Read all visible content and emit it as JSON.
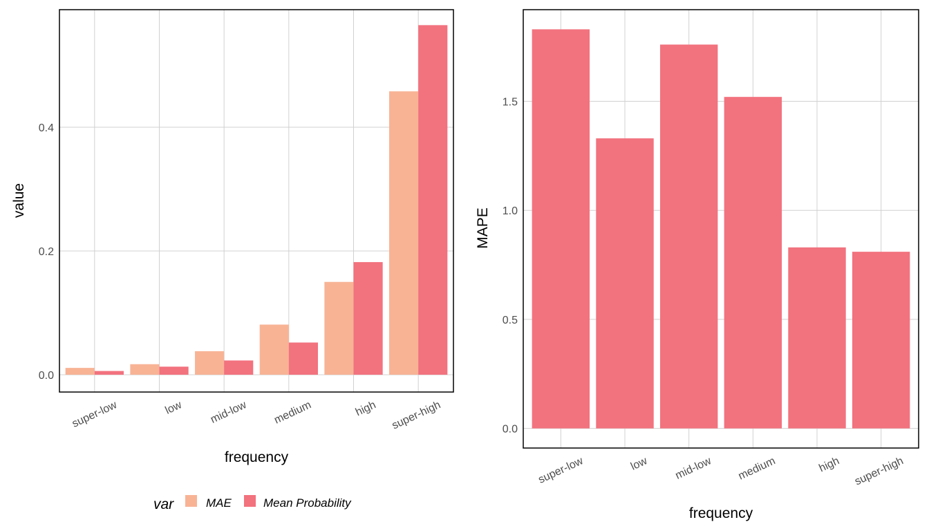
{
  "chart_data": [
    {
      "type": "bar",
      "categories": [
        "super-low",
        "low",
        "mid-low",
        "medium",
        "high",
        "super-high"
      ],
      "series": [
        {
          "name": "MAE",
          "values": [
            0.011,
            0.017,
            0.038,
            0.081,
            0.15,
            0.458
          ]
        },
        {
          "name": "Mean Probability",
          "values": [
            0.006,
            0.013,
            0.023,
            0.052,
            0.182,
            0.565
          ]
        }
      ],
      "xlabel": "frequency",
      "ylabel": "value",
      "ylim": [
        -0.028,
        0.59
      ],
      "yticks": [
        0.0,
        0.2,
        0.4
      ],
      "ytick_labels": [
        "0.0",
        "0.2",
        "0.4"
      ],
      "legend": {
        "title": "var",
        "position": "bottom"
      },
      "colors": {
        "MAE": "#f8b395",
        "Mean Probability": "#f2727e"
      },
      "grid": true
    },
    {
      "type": "bar",
      "categories": [
        "super-low",
        "low",
        "mid-low",
        "medium",
        "high",
        "super-high"
      ],
      "series": [
        {
          "name": "",
          "values": [
            1.83,
            1.33,
            1.76,
            1.52,
            0.83,
            0.81
          ]
        }
      ],
      "xlabel": "frequency",
      "ylabel": "MAPE",
      "ylim": [
        -0.09,
        1.92
      ],
      "yticks": [
        0.0,
        0.5,
        1.0,
        1.5
      ],
      "ytick_labels": [
        "0.0",
        "0.5",
        "1.0",
        "1.5"
      ],
      "colors": {
        "bar": "#f2727e"
      },
      "grid": true
    }
  ]
}
